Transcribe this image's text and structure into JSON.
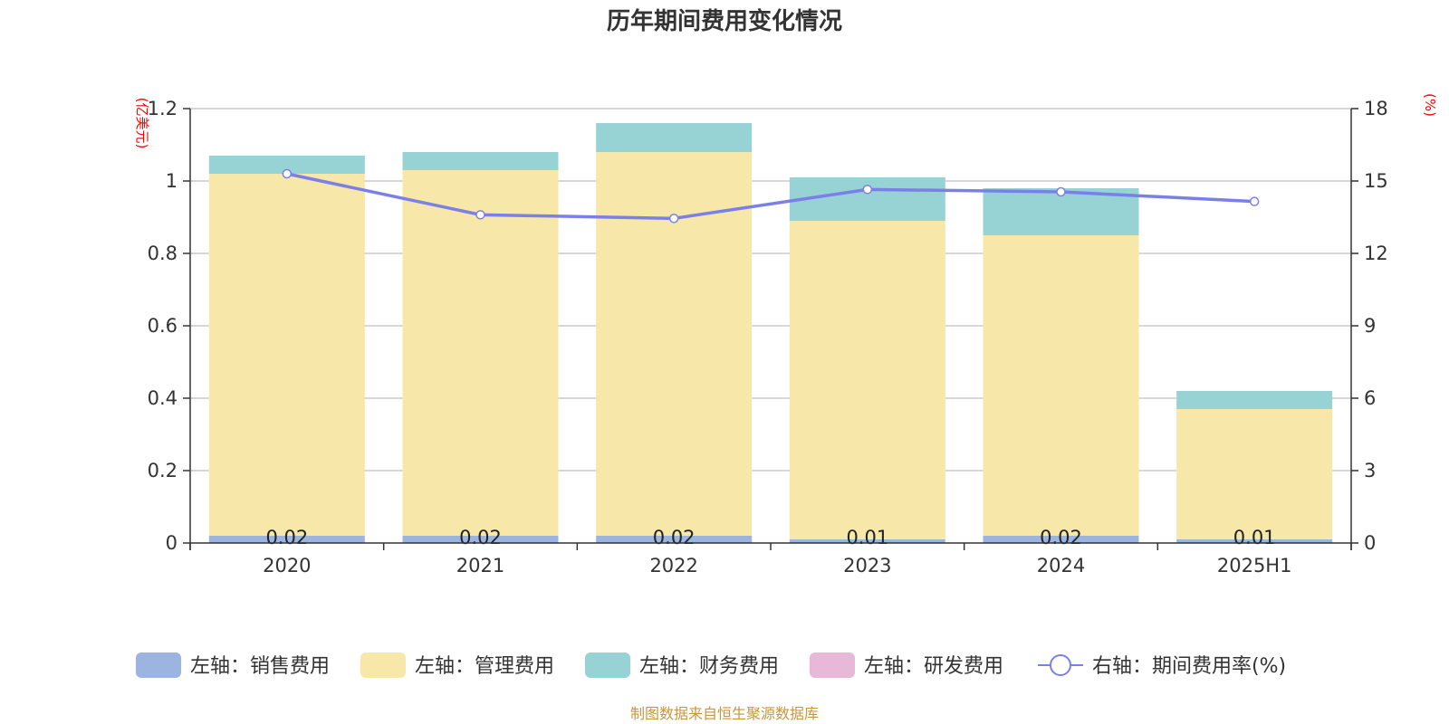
{
  "chart_data": {
    "type": "bar",
    "stacked": true,
    "title": "历年期间费用变化情况",
    "categories": [
      "2020",
      "2021",
      "2022",
      "2023",
      "2024",
      "2025H1"
    ],
    "left_axis": {
      "unit_label": "(亿美元)",
      "min": 0,
      "max": 1.2,
      "ticks": [
        "0",
        "0.2",
        "0.4",
        "0.6",
        "0.8",
        "1",
        "1.2"
      ]
    },
    "right_axis": {
      "unit_label": "(%)",
      "min": 0,
      "max": 18,
      "ticks": [
        "0",
        "3",
        "6",
        "9",
        "12",
        "15",
        "18"
      ]
    },
    "series": [
      {
        "name": "左轴：销售费用",
        "type": "bar",
        "axis": "left",
        "color": "#9bb5e0",
        "values": [
          0.02,
          0.02,
          0.02,
          0.01,
          0.02,
          0.01
        ],
        "labels": [
          "0.02",
          "0.02",
          "0.02",
          "0.01",
          "0.02",
          "0.01"
        ]
      },
      {
        "name": "左轴：管理费用",
        "type": "bar",
        "axis": "left",
        "color": "#f7e7a8",
        "values": [
          1.0,
          1.01,
          1.06,
          0.88,
          0.83,
          0.36
        ]
      },
      {
        "name": "左轴：财务费用",
        "type": "bar",
        "axis": "left",
        "color": "#97d3d5",
        "values": [
          0.05,
          0.05,
          0.08,
          0.12,
          0.13,
          0.05
        ]
      },
      {
        "name": "左轴：研发费用",
        "type": "bar",
        "axis": "left",
        "color": "#e8b8d8",
        "values": [
          0,
          0,
          0,
          0,
          0,
          0
        ]
      },
      {
        "name": "右轴：期间费用率(%)",
        "type": "line",
        "axis": "right",
        "color": "#7b7fe8",
        "values": [
          15.3,
          13.6,
          13.45,
          14.65,
          14.55,
          14.15
        ]
      }
    ],
    "source": "制图数据来自恒生聚源数据库"
  }
}
